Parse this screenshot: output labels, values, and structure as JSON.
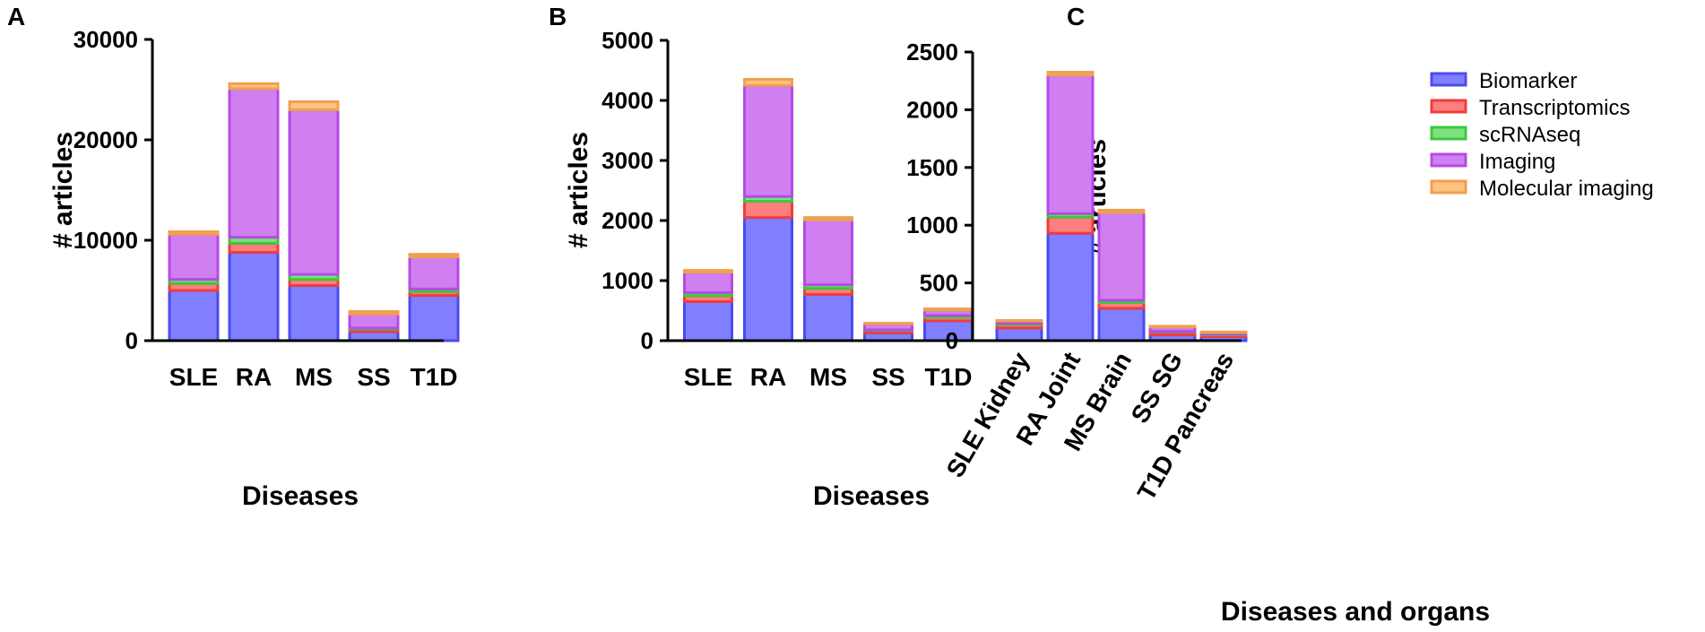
{
  "legend": [
    {
      "name": "Biomarker",
      "fill": "#7f7fff",
      "stroke": "#4b4bf0"
    },
    {
      "name": "Transcriptomics",
      "fill": "#ff7f7f",
      "stroke": "#f03c3c"
    },
    {
      "name": "scRNAseq",
      "fill": "#7fe07f",
      "stroke": "#3cc83c"
    },
    {
      "name": "Imaging",
      "fill": "#d07ff0",
      "stroke": "#b44be6"
    },
    {
      "name": "Molecular imaging",
      "fill": "#ffc27f",
      "stroke": "#f0a050"
    }
  ],
  "chart_data": [
    {
      "panel": "A",
      "type": "bar",
      "stacked": true,
      "title": "",
      "xlabel": "Diseases",
      "ylabel": "# articles",
      "ylim": [
        0,
        30000
      ],
      "yticks": [
        0,
        10000,
        20000,
        30000
      ],
      "categories": [
        "SLE",
        "RA",
        "MS",
        "SS",
        "T1D"
      ],
      "series": [
        {
          "name": "Biomarker",
          "values": [
            5000,
            8800,
            5500,
            900,
            4500
          ]
        },
        {
          "name": "Transcriptomics",
          "values": [
            700,
            900,
            600,
            250,
            400
          ]
        },
        {
          "name": "scRNAseq",
          "values": [
            400,
            600,
            500,
            100,
            250
          ]
        },
        {
          "name": "Imaging",
          "values": [
            4500,
            14800,
            16400,
            1400,
            3200
          ]
        },
        {
          "name": "Molecular imaging",
          "values": [
            250,
            500,
            800,
            250,
            250
          ]
        }
      ]
    },
    {
      "panel": "B",
      "type": "bar",
      "stacked": true,
      "title": "",
      "xlabel": "Diseases",
      "ylabel": "# articles",
      "ylim": [
        0,
        5000
      ],
      "yticks": [
        0,
        1000,
        2000,
        3000,
        4000,
        5000
      ],
      "categories": [
        "SLE",
        "RA",
        "MS",
        "SS",
        "T1D"
      ],
      "series": [
        {
          "name": "Biomarker",
          "values": [
            650,
            2050,
            770,
            130,
            330
          ]
        },
        {
          "name": "Transcriptomics",
          "values": [
            100,
            270,
            100,
            40,
            60
          ]
        },
        {
          "name": "scRNAseq",
          "values": [
            50,
            80,
            60,
            10,
            30
          ]
        },
        {
          "name": "Imaging",
          "values": [
            340,
            1850,
            1080,
            100,
            90
          ]
        },
        {
          "name": "Molecular imaging",
          "values": [
            30,
            100,
            40,
            10,
            20
          ]
        }
      ]
    },
    {
      "panel": "C",
      "type": "bar",
      "stacked": true,
      "title": "",
      "xlabel": "Diseases and organs",
      "ylabel": "# articles",
      "ylim": [
        0,
        2500
      ],
      "yticks": [
        0,
        500,
        1000,
        1500,
        2000,
        2500
      ],
      "categories": [
        "SLE Kidney",
        "RA Joint",
        "MS Brain",
        "SS SG",
        "T1D Pancreas"
      ],
      "series": [
        {
          "name": "Biomarker",
          "values": [
            110,
            930,
            280,
            50,
            35
          ]
        },
        {
          "name": "Transcriptomics",
          "values": [
            30,
            140,
            50,
            25,
            15
          ]
        },
        {
          "name": "scRNAseq",
          "values": [
            10,
            30,
            20,
            5,
            5
          ]
        },
        {
          "name": "Imaging",
          "values": [
            20,
            1200,
            760,
            40,
            15
          ]
        },
        {
          "name": "Molecular imaging",
          "values": [
            5,
            25,
            20,
            5,
            5
          ]
        }
      ]
    }
  ]
}
